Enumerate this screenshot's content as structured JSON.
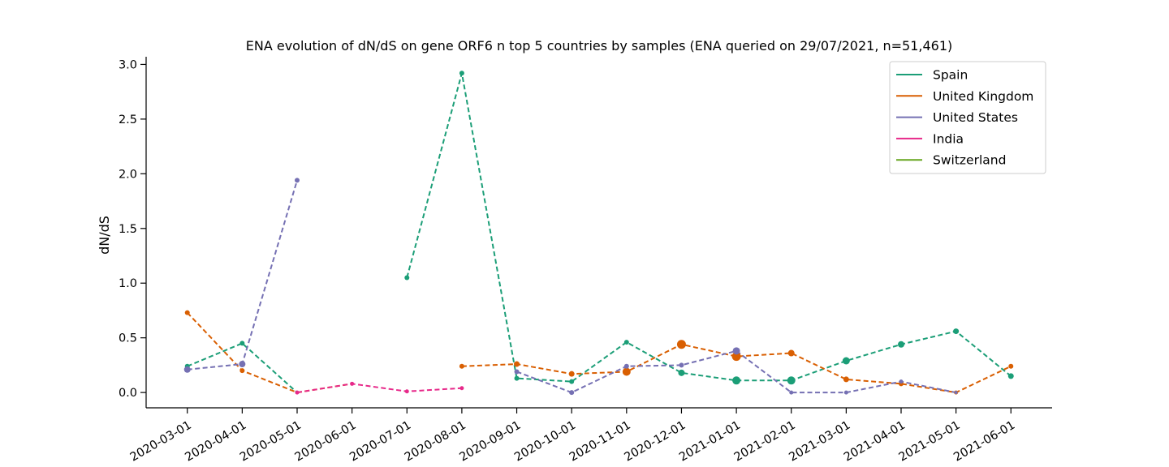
{
  "chart_data": {
    "type": "line",
    "title": "ENA evolution of dN/dS on gene ORF6 n top 5 countries by samples (ENA queried on 29/07/2021, n=51,461)",
    "xlabel": "",
    "ylabel": "dN/dS",
    "categories": [
      "2020-03-01",
      "2020-04-01",
      "2020-05-01",
      "2020-06-01",
      "2020-07-01",
      "2020-08-01",
      "2020-09-01",
      "2020-10-01",
      "2020-11-01",
      "2020-12-01",
      "2021-01-01",
      "2021-02-01",
      "2021-03-01",
      "2021-04-01",
      "2021-05-01",
      "2021-06-01"
    ],
    "yticks": [
      "0.0",
      "0.5",
      "1.0",
      "1.5",
      "2.0",
      "2.5",
      "3.0"
    ],
    "ylim": [
      -0.14,
      3.07
    ],
    "line_style": "dashed",
    "legend_position": "top-right",
    "grid": false,
    "series": [
      {
        "name": "Spain",
        "color": "#1b9e77",
        "values": [
          0.24,
          0.45,
          0.0,
          null,
          1.05,
          2.92,
          0.13,
          0.1,
          0.46,
          0.18,
          0.11,
          0.11,
          0.29,
          0.44,
          0.56,
          0.15
        ],
        "marker_sizes": [
          3,
          3,
          2,
          null,
          3,
          3,
          3,
          3,
          3,
          4,
          5,
          5,
          4.5,
          4,
          3.5,
          3.5
        ]
      },
      {
        "name": "United Kingdom",
        "color": "#d95f02",
        "values": [
          0.73,
          0.2,
          0.0,
          0.08,
          null,
          0.24,
          0.26,
          0.17,
          0.19,
          0.44,
          0.33,
          0.36,
          0.12,
          0.08,
          0.0,
          0.24
        ],
        "marker_sizes": [
          3,
          3,
          2,
          2,
          null,
          3,
          3.5,
          3.5,
          5,
          5.5,
          5.5,
          4,
          3.5,
          3,
          2.5,
          3
        ]
      },
      {
        "name": "United States",
        "color": "#7570b3",
        "values": [
          0.21,
          0.26,
          1.94,
          null,
          null,
          null,
          0.19,
          0.0,
          0.24,
          0.25,
          0.38,
          0.0,
          0.0,
          0.1,
          0.0,
          null
        ],
        "marker_sizes": [
          4,
          4,
          3,
          null,
          null,
          null,
          3,
          3,
          3,
          3,
          4.5,
          2.5,
          2.5,
          2.5,
          2,
          null
        ]
      },
      {
        "name": "India",
        "color": "#e7298a",
        "values": [
          null,
          null,
          0.0,
          0.08,
          0.01,
          0.04,
          null,
          null,
          null,
          null,
          null,
          null,
          null,
          null,
          null,
          null
        ],
        "marker_sizes": [
          null,
          null,
          2.5,
          2.5,
          2.5,
          2.5,
          null,
          null,
          null,
          null,
          null,
          null,
          null,
          null,
          null,
          null
        ]
      },
      {
        "name": "Switzerland",
        "color": "#66a61e",
        "values": [
          null,
          null,
          null,
          null,
          null,
          null,
          null,
          null,
          null,
          null,
          null,
          null,
          null,
          null,
          null,
          null
        ],
        "marker_sizes": []
      }
    ]
  }
}
